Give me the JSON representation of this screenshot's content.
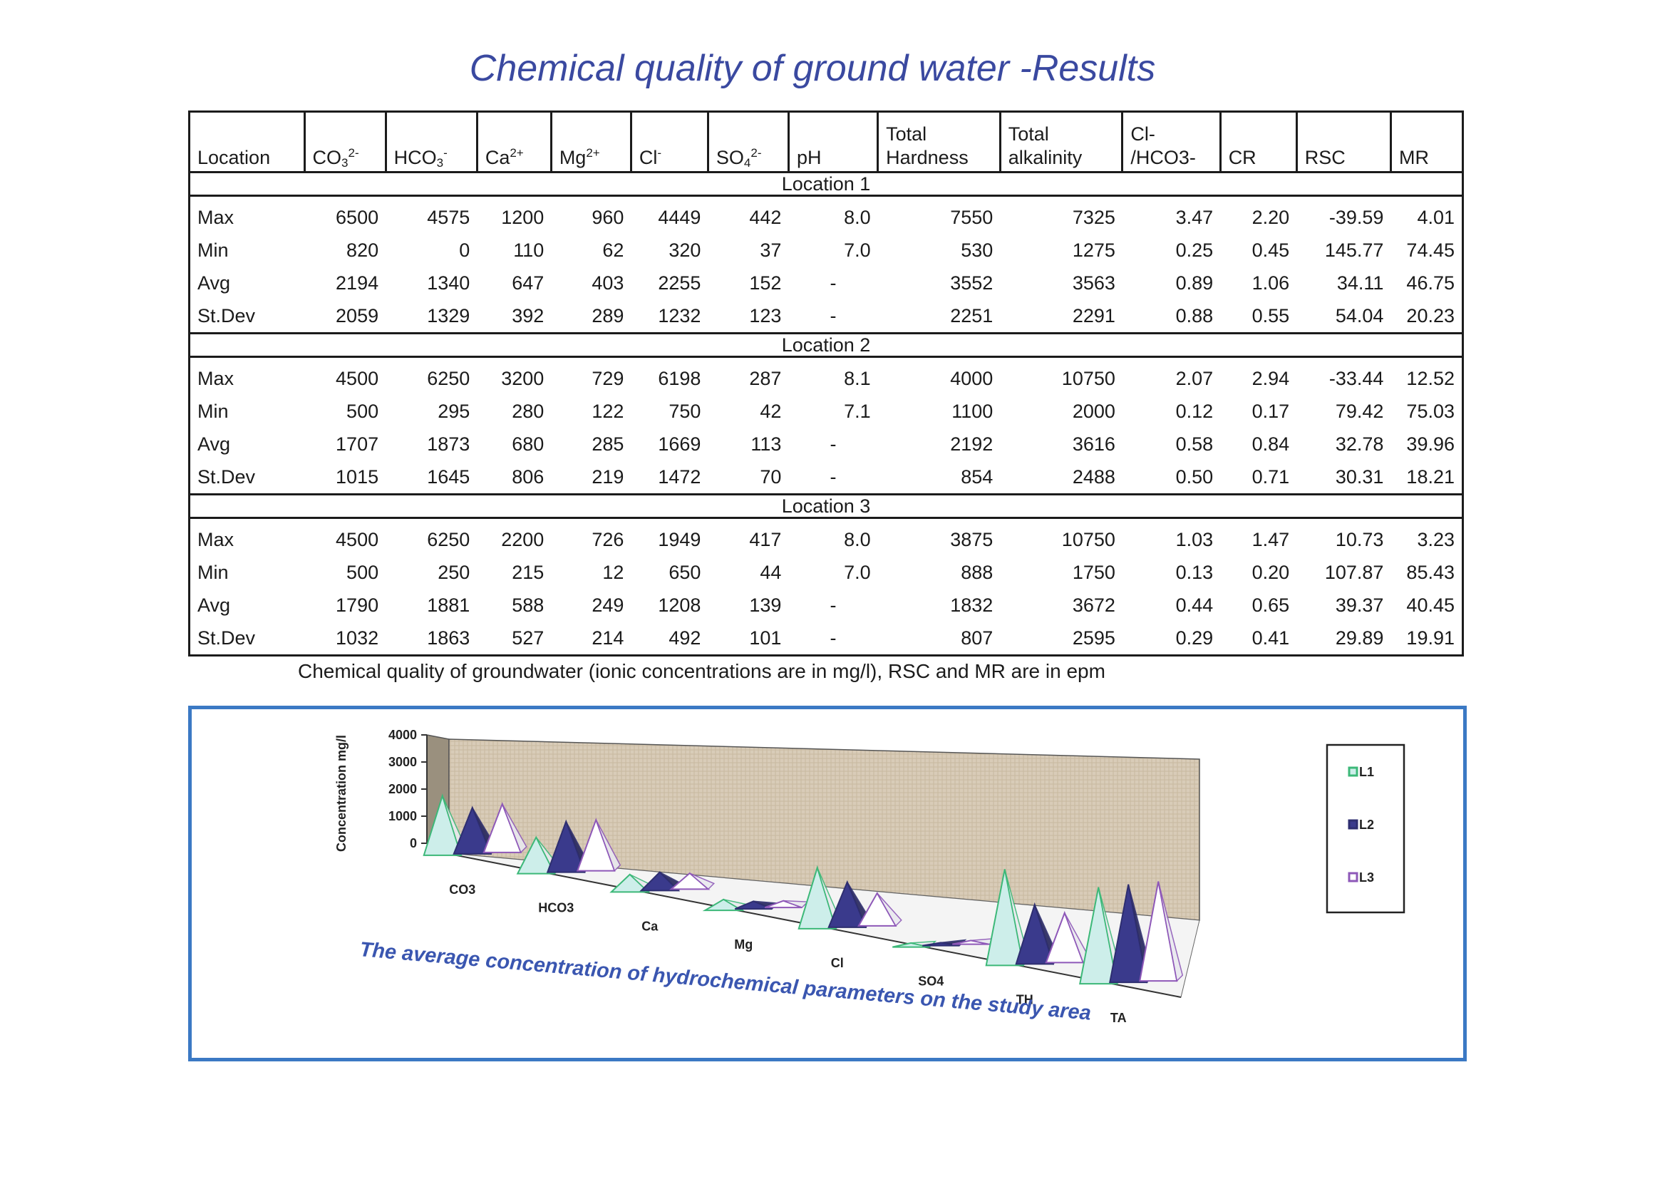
{
  "title": "Chemical quality of ground water -Results",
  "table": {
    "headers": [
      {
        "text": "Location"
      },
      {
        "base": "CO",
        "sub": "3",
        "sup": "2-"
      },
      {
        "base": "HCO",
        "sub": "3",
        "sup": "-"
      },
      {
        "base": "Ca",
        "sup": "2+"
      },
      {
        "base": "Mg",
        "sup": "2+"
      },
      {
        "base": "Cl",
        "sup": "-"
      },
      {
        "base": "SO",
        "sub": "4",
        "sup": "2-"
      },
      {
        "text": "pH"
      },
      {
        "line1": "Total",
        "line2": "Hardness"
      },
      {
        "line1": "Total",
        "line2": "alkalinity"
      },
      {
        "line1": "Cl-",
        "line2": "/HCO3-"
      },
      {
        "text": "CR"
      },
      {
        "text": "RSC"
      },
      {
        "text": "MR"
      }
    ],
    "sections": [
      {
        "name": "Location 1",
        "rows": [
          [
            "Max",
            "6500",
            "4575",
            "1200",
            "960",
            "4449",
            "442",
            "8.0",
            "7550",
            "7325",
            "3.47",
            "2.20",
            "-39.59",
            "4.01"
          ],
          [
            "Min",
            "820",
            "0",
            "110",
            "62",
            "320",
            "37",
            "7.0",
            "530",
            "1275",
            "0.25",
            "0.45",
            "145.77",
            "74.45"
          ],
          [
            "Avg",
            "2194",
            "1340",
            "647",
            "403",
            "2255",
            "152",
            "-",
            "3552",
            "3563",
            "0.89",
            "1.06",
            "34.11",
            "46.75"
          ],
          [
            "St.Dev",
            "2059",
            "1329",
            "392",
            "289",
            "1232",
            "123",
            "-",
            "2251",
            "2291",
            "0.88",
            "0.55",
            "54.04",
            "20.23"
          ]
        ]
      },
      {
        "name": "Location 2",
        "rows": [
          [
            "Max",
            "4500",
            "6250",
            "3200",
            "729",
            "6198",
            "287",
            "8.1",
            "4000",
            "10750",
            "2.07",
            "2.94",
            "-33.44",
            "12.52"
          ],
          [
            "Min",
            "500",
            "295",
            "280",
            "122",
            "750",
            "42",
            "7.1",
            "1100",
            "2000",
            "0.12",
            "0.17",
            "79.42",
            "75.03"
          ],
          [
            "Avg",
            "1707",
            "1873",
            "680",
            "285",
            "1669",
            "113",
            "-",
            "2192",
            "3616",
            "0.58",
            "0.84",
            "32.78",
            "39.96"
          ],
          [
            "St.Dev",
            "1015",
            "1645",
            "806",
            "219",
            "1472",
            "70",
            "-",
            "854",
            "2488",
            "0.50",
            "0.71",
            "30.31",
            "18.21"
          ]
        ]
      },
      {
        "name": "Location 3",
        "rows": [
          [
            "Max",
            "4500",
            "6250",
            "2200",
            "726",
            "1949",
            "417",
            "8.0",
            "3875",
            "10750",
            "1.03",
            "1.47",
            "10.73",
            "3.23"
          ],
          [
            "Min",
            "500",
            "250",
            "215",
            "12",
            "650",
            "44",
            "7.0",
            "888",
            "1750",
            "0.13",
            "0.20",
            "107.87",
            "85.43"
          ],
          [
            "Avg",
            "1790",
            "1881",
            "588",
            "249",
            "1208",
            "139",
            "-",
            "1832",
            "3672",
            "0.44",
            "0.65",
            "39.37",
            "40.45"
          ],
          [
            "St.Dev",
            "1032",
            "1863",
            "527",
            "214",
            "492",
            "101",
            "-",
            "807",
            "2595",
            "0.29",
            "0.41",
            "29.89",
            "19.91"
          ]
        ]
      }
    ]
  },
  "caption": "Chemical quality of groundwater (ionic concentrations are in mg/l), RSC and MR are in epm",
  "chart_data": {
    "type": "bar",
    "subtype": "3d-pyramid",
    "title": "The average concentration of hydrochemical parameters on the study area",
    "xlabel": "",
    "ylabel": "Concentration mg/l",
    "ylim": [
      0,
      4000
    ],
    "yticks": [
      0,
      1000,
      2000,
      3000,
      4000
    ],
    "categories": [
      "CO3",
      "HCO3",
      "Ca",
      "Mg",
      "Cl",
      "SO4",
      "TH",
      "TA"
    ],
    "series": [
      {
        "name": "L1",
        "values": [
          2194,
          1340,
          647,
          403,
          2255,
          152,
          3552,
          3563
        ],
        "color": "#3cb878",
        "fill": "#cdeeea"
      },
      {
        "name": "L2",
        "values": [
          1707,
          1873,
          680,
          285,
          1669,
          113,
          2192,
          3616
        ],
        "color": "#2e2e70",
        "fill": "#3a3a8c"
      },
      {
        "name": "L3",
        "values": [
          1790,
          1881,
          588,
          249,
          1208,
          139,
          1832,
          3672
        ],
        "color": "#8e58b8",
        "fill": "#ffffff"
      }
    ],
    "legend": "right",
    "grid": false,
    "colors": {
      "title": "#3a56b0",
      "wall": "#d9ccb8",
      "side_wall": "#9a907e",
      "frame": "#3b79c4"
    }
  }
}
